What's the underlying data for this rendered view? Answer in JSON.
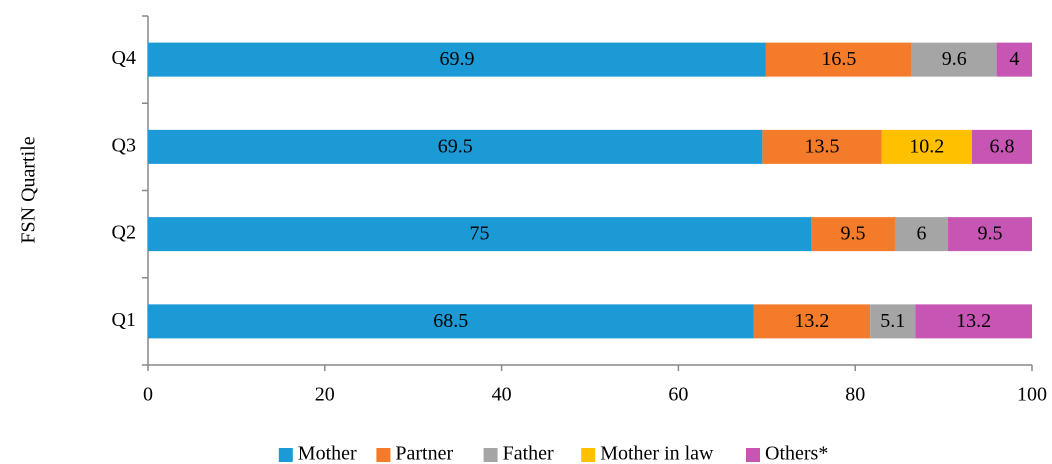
{
  "chart_data": {
    "type": "stacked_barh",
    "y_label": "FSN Quartile",
    "categories": [
      "Q1",
      "Q2",
      "Q3",
      "Q4"
    ],
    "series": [
      {
        "name": "Mother",
        "color": "#1b9ad6",
        "values": [
          68.5,
          75,
          69.5,
          69.9
        ]
      },
      {
        "name": "Partner",
        "color": "#f47b29",
        "values": [
          13.2,
          9.5,
          13.5,
          16.5
        ]
      },
      {
        "name": "Father",
        "color": "#a5a5a5",
        "values": [
          5.1,
          6,
          null,
          9.6
        ]
      },
      {
        "name": "Mother in law",
        "color": "#ffc000",
        "values": [
          null,
          null,
          10.2,
          null
        ]
      },
      {
        "name": "Others*",
        "color": "#c655b4",
        "values": [
          13.2,
          9.5,
          6.8,
          4
        ]
      }
    ],
    "xlim": [
      0,
      100
    ],
    "xticks": [
      0,
      20,
      40,
      60,
      80,
      100
    ],
    "grid": false,
    "legend": "bottom"
  }
}
